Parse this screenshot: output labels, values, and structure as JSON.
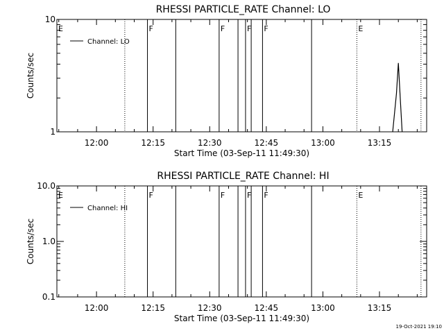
{
  "chart_data": [
    {
      "type": "line",
      "title": "RHESSI PARTICLE_RATE Channel: LO",
      "xlabel": "Start Time (03-Sep-11 11:49:30)",
      "ylabel": "Counts/sec",
      "yscale": "log",
      "ylim": [
        1,
        10
      ],
      "yticks": [
        {
          "value": 1,
          "label": "1"
        },
        {
          "value": 10,
          "label": "10"
        }
      ],
      "xlim": [
        "11:49:30",
        "13:27:30"
      ],
      "xticks": [
        "12:00",
        "12:15",
        "12:30",
        "12:45",
        "13:00",
        "13:15"
      ],
      "legend": {
        "position": "top-left",
        "label": "Channel: LO"
      },
      "series": [
        {
          "name": "Channel: LO",
          "x": [
            "13:18:30",
            "13:19:30",
            "13:20:00",
            "13:20:30",
            "13:21:00"
          ],
          "y": [
            1,
            2.2,
            4.1,
            2.0,
            1
          ]
        }
      ]
    },
    {
      "type": "line",
      "title": "RHESSI PARTICLE_RATE Channel: HI",
      "xlabel": "Start Time (03-Sep-11 11:49:30)",
      "ylabel": "Counts/sec",
      "yscale": "log",
      "ylim": [
        0.1,
        10
      ],
      "yticks": [
        {
          "value": 0.1,
          "label": "0.1"
        },
        {
          "value": 1,
          "label": "1.0"
        },
        {
          "value": 10,
          "label": "10.0"
        }
      ],
      "xlim": [
        "11:49:30",
        "13:27:30"
      ],
      "xticks": [
        "12:00",
        "12:15",
        "12:30",
        "12:45",
        "13:00",
        "13:15"
      ],
      "legend": {
        "position": "top-left",
        "label": "Channel: HI"
      },
      "series": [
        {
          "name": "Channel: HI",
          "x": [],
          "y": []
        }
      ]
    }
  ],
  "events": [
    {
      "time": "11:49:30",
      "flag": "E",
      "style": "none"
    },
    {
      "time": "12:07:30",
      "flag": "",
      "style": "dotted"
    },
    {
      "time": "12:13:30",
      "flag": "F",
      "style": "solid"
    },
    {
      "time": "12:21:00",
      "flag": "",
      "style": "solid"
    },
    {
      "time": "12:32:30",
      "flag": "F",
      "style": "solid"
    },
    {
      "time": "12:37:30",
      "flag": "",
      "style": "solid"
    },
    {
      "time": "12:39:30",
      "flag": "F",
      "style": "solid"
    },
    {
      "time": "12:41:00",
      "flag": "",
      "style": "solid"
    },
    {
      "time": "12:44:00",
      "flag": "F",
      "style": "solid"
    },
    {
      "time": "12:57:00",
      "flag": "",
      "style": "solid"
    },
    {
      "time": "13:09:00",
      "flag": "E",
      "style": "dotted"
    },
    {
      "time": "13:26:00",
      "flag": "",
      "style": "dotted"
    }
  ],
  "footer": {
    "timestamp": "19-Oct-2021 19:10"
  }
}
